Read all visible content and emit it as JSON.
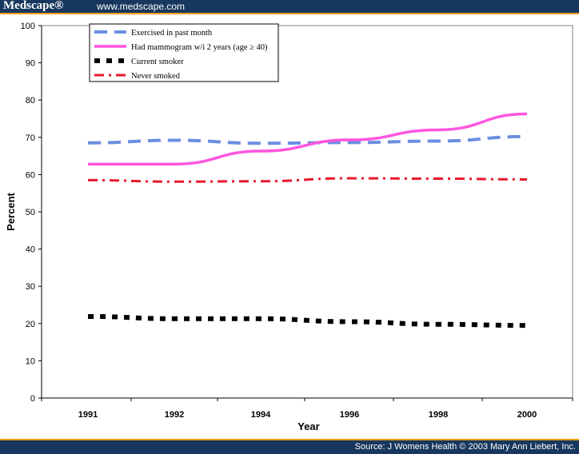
{
  "header": {
    "brand": "Medscape®",
    "url": "www.medscape.com",
    "bar_color": "#17375e",
    "accent_color": "#f39c12"
  },
  "footer": {
    "source": "Source: J Womens Health © 2003 Mary Ann Liebert, Inc."
  },
  "chart_data": {
    "type": "line",
    "title": "",
    "xlabel": "Year",
    "ylabel": "Percent",
    "x_tick_labels": [
      "1991",
      "1992",
      "1994",
      "1996",
      "1998",
      "2000"
    ],
    "ylim": [
      0,
      100
    ],
    "y_ticks": [
      0,
      10,
      20,
      30,
      40,
      50,
      60,
      70,
      80,
      90,
      100
    ],
    "grid": false,
    "legend_position": "top-left",
    "series": [
      {
        "name": "Exercised in past month",
        "color": "#6b8fe0",
        "dash": "dashed",
        "points": [
          [
            "1991",
            68.5
          ],
          [
            "1992",
            69.2
          ],
          [
            "1994",
            68.4
          ],
          [
            "1996",
            68.6
          ],
          [
            "1998",
            69.0
          ],
          [
            "2000",
            70.2
          ]
        ]
      },
      {
        "name": "Had mammogram w/i 2 years (age ≥ 40)",
        "color": "#ff55e0",
        "dash": "solid",
        "points": [
          [
            "1991",
            62.8
          ],
          [
            "1992",
            62.8
          ],
          [
            "1994",
            66.3
          ],
          [
            "1996",
            69.3
          ],
          [
            "1998",
            72.0
          ],
          [
            "2000",
            76.3
          ]
        ]
      },
      {
        "name": "Current smoker",
        "color": "#000000",
        "dash": "dotted",
        "points": [
          [
            "1991",
            21.9
          ],
          [
            "1992",
            21.3
          ],
          [
            "1994",
            21.3
          ],
          [
            "1996",
            20.5
          ],
          [
            "1998",
            19.8
          ],
          [
            "2000",
            19.5
          ]
        ]
      },
      {
        "name": "Never smoked",
        "color": "#e8192c",
        "dash": "dashdot",
        "points": [
          [
            "1991",
            58.5
          ],
          [
            "1992",
            58.1
          ],
          [
            "1994",
            58.2
          ],
          [
            "1996",
            59.0
          ],
          [
            "1998",
            58.9
          ],
          [
            "2000",
            58.7
          ]
        ]
      }
    ]
  }
}
